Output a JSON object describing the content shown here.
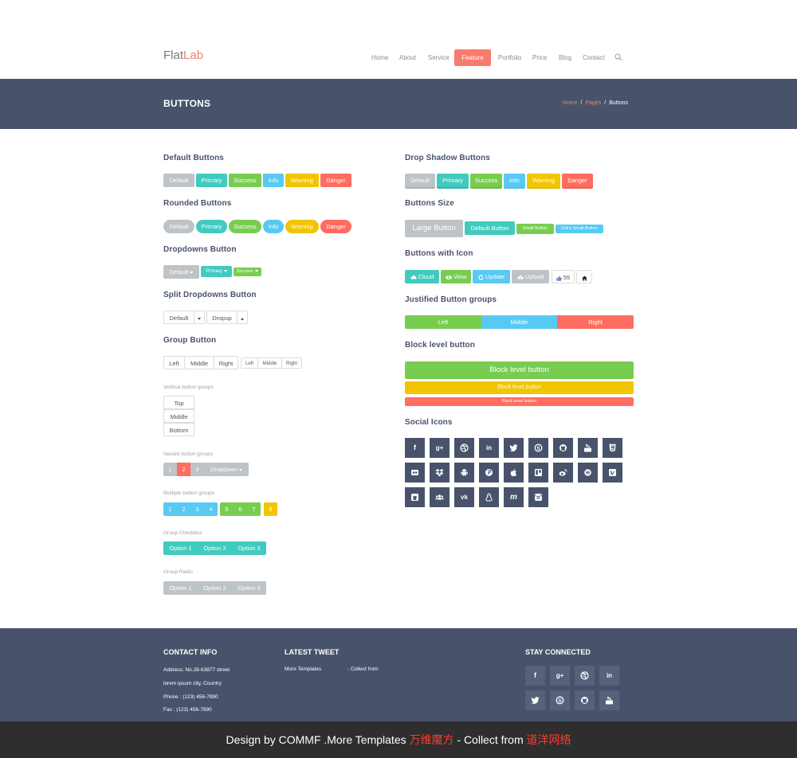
{
  "header": {
    "logo_part1": "Flat",
    "logo_part2": "Lab",
    "nav": [
      "Home",
      "About",
      "Service",
      "Feature",
      "Portfolio",
      "Price",
      "Blog",
      "Contact"
    ]
  },
  "banner": {
    "title": "BUTTONS",
    "breadcrumb": [
      "Home",
      "Pages",
      "Buttons"
    ],
    "sep": "/"
  },
  "left": {
    "default_title": "Default Buttons",
    "rounded_title": "Rounded Buttons",
    "dropdown_title": "Dropdowns Button",
    "split_title": "Split Dropdowns Button",
    "group_title": "Group Button",
    "vertical_title": "Vertical button groups",
    "nested_title": "Nested button groups",
    "multiple_title": "Multiple button groups",
    "checkbox_title": "Group Checkbox",
    "radio_title": "Group Radio",
    "labels": [
      "Default",
      "Primary",
      "Success",
      "Info",
      "Warning",
      "Danger"
    ],
    "dropdowns": [
      "Default",
      "Primary",
      "Success"
    ],
    "split": [
      "Default",
      "Dropup"
    ],
    "group": [
      "Left",
      "Middle",
      "Right"
    ],
    "vertical": [
      "Top",
      "Middle",
      "Bottom"
    ],
    "nested": [
      "1",
      "2",
      "3",
      "Dropdown"
    ],
    "multiple": [
      "1",
      "2",
      "3",
      "4",
      "5",
      "6",
      "7",
      "8"
    ],
    "options": [
      "Option 1",
      "Option 2",
      "Option 3"
    ]
  },
  "right": {
    "shadow_title": "Drop Shadow Buttons",
    "size_title": "Buttons Size",
    "icon_title": "Buttons with Icon",
    "justified_title": "Justified Button groups",
    "block_title": "Block level button",
    "social_title": "Social Icons",
    "sizes": [
      "Large Button",
      "Default Button",
      "Small Button",
      "Extra Small Button"
    ],
    "icon_buttons": [
      "Cloud",
      "View",
      "Update",
      "Upload",
      "55"
    ],
    "justified": [
      "Left",
      "Middle",
      "Right"
    ],
    "block": [
      "Block level button",
      "Block level button",
      "Block level button"
    ]
  },
  "social_icons": [
    "facebook",
    "google-plus",
    "dribbble",
    "linkedin",
    "twitter",
    "skype",
    "github",
    "youtube",
    "html5",
    "flickr",
    "dropbox",
    "android",
    "foursquare",
    "apple",
    "trello",
    "weibo",
    "stackexchange",
    "vimeo",
    "github-alt",
    "users",
    "vk",
    "linux",
    "maxcdn",
    "instagram"
  ],
  "footer": {
    "contact_title": "CONTACT INFO",
    "contact_lines": [
      "Address: No.28-63877 street",
      "lorem ipsum city, Country",
      "Phone : (123) 456-7890",
      "Fax : (123) 456-7890"
    ],
    "tweet_title": "LATEST TWEET",
    "tweet_a": "More Templates",
    "tweet_b": "- Collect from",
    "stay_title": "STAY CONNECTED"
  },
  "credits": {
    "a": "Design by COMMF .More Templates ",
    "b": "万维魔方",
    "c": " - Collect from ",
    "d": "道洋网络"
  },
  "colors": {
    "default": "#bec3c7",
    "primary": "#41cac0",
    "success": "#78cd51",
    "info": "#58c9f3",
    "warning": "#f1c500",
    "danger": "#ff6c60",
    "navy": "#48536b"
  }
}
